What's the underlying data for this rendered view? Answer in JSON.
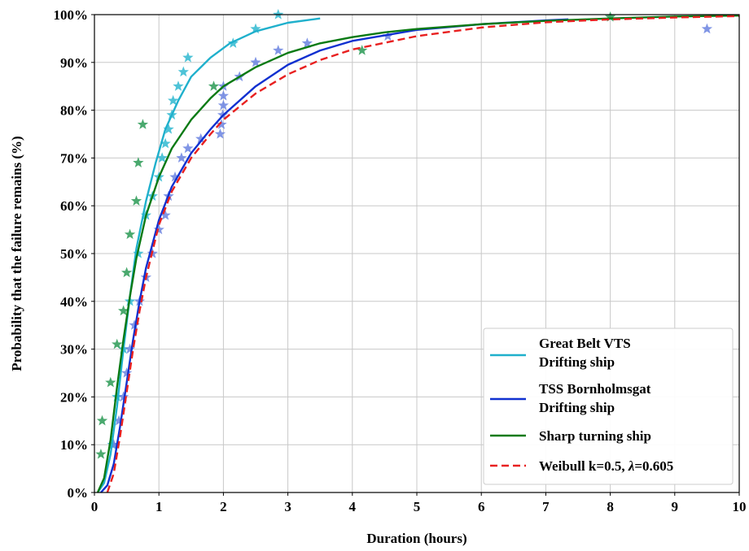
{
  "chart_data": {
    "type": "scatter",
    "xlabel": "Duration (hours)",
    "ylabel": "Probability that the failure remains (%)",
    "xlim": [
      0,
      10
    ],
    "ylim": [
      0,
      100
    ],
    "x_ticks": [
      "0",
      "1",
      "2",
      "3",
      "4",
      "5",
      "6",
      "7",
      "8",
      "9",
      "10"
    ],
    "y_ticks": [
      "0%",
      "10%",
      "20%",
      "30%",
      "40%",
      "50%",
      "60%",
      "70%",
      "80%",
      "90%",
      "100%"
    ],
    "grid": true,
    "legend_position": "bottom-right",
    "series": [
      {
        "name": "Great Belt VTS\nDrifting ship",
        "legend_lines": [
          "Great Belt VTS",
          "Drifting ship"
        ],
        "color": "#1fb0cc",
        "marker_color": "#2fb8d0",
        "line_style": "solid",
        "curve": [
          [
            0.05,
            0
          ],
          [
            0.15,
            2
          ],
          [
            0.25,
            8
          ],
          [
            0.35,
            18
          ],
          [
            0.45,
            30
          ],
          [
            0.55,
            41
          ],
          [
            0.65,
            51
          ],
          [
            0.8,
            61
          ],
          [
            0.95,
            69
          ],
          [
            1.1,
            76
          ],
          [
            1.3,
            82
          ],
          [
            1.5,
            87
          ],
          [
            1.8,
            91
          ],
          [
            2.1,
            94
          ],
          [
            2.5,
            96.5
          ],
          [
            3.0,
            98.3
          ],
          [
            3.5,
            99.2
          ]
        ],
        "points": [
          [
            0.28,
            10
          ],
          [
            0.35,
            20
          ],
          [
            0.45,
            30
          ],
          [
            0.55,
            40
          ],
          [
            0.68,
            50
          ],
          [
            0.8,
            58
          ],
          [
            0.9,
            62
          ],
          [
            1.0,
            66
          ],
          [
            1.05,
            70
          ],
          [
            1.1,
            73
          ],
          [
            1.15,
            76
          ],
          [
            1.2,
            79
          ],
          [
            1.22,
            82
          ],
          [
            1.3,
            85
          ],
          [
            1.38,
            88
          ],
          [
            1.45,
            91
          ],
          [
            2.15,
            94
          ],
          [
            2.5,
            97
          ],
          [
            2.85,
            100
          ]
        ]
      },
      {
        "name": "TSS Bornholmsgat\nDrifting ship",
        "legend_lines": [
          "TSS Bornholmsgat",
          "Drifting ship"
        ],
        "color": "#1030d0",
        "marker_color": "#6a82e0",
        "line_style": "solid",
        "curve": [
          [
            0.1,
            0
          ],
          [
            0.2,
            1.5
          ],
          [
            0.3,
            6
          ],
          [
            0.4,
            14
          ],
          [
            0.5,
            23
          ],
          [
            0.6,
            32
          ],
          [
            0.7,
            40
          ],
          [
            0.8,
            47
          ],
          [
            1.0,
            57
          ],
          [
            1.2,
            64
          ],
          [
            1.5,
            71
          ],
          [
            1.8,
            76
          ],
          [
            2.0,
            79
          ],
          [
            2.5,
            85
          ],
          [
            3.0,
            89.5
          ],
          [
            3.5,
            92.5
          ],
          [
            4.0,
            94.5
          ],
          [
            5.0,
            96.8
          ],
          [
            6.0,
            98
          ],
          [
            7.0,
            98.8
          ],
          [
            7.35,
            99
          ]
        ],
        "points": [
          [
            0.3,
            10
          ],
          [
            0.38,
            15
          ],
          [
            0.45,
            20
          ],
          [
            0.5,
            25
          ],
          [
            0.55,
            30
          ],
          [
            0.62,
            35
          ],
          [
            0.7,
            40
          ],
          [
            0.8,
            45
          ],
          [
            0.9,
            50
          ],
          [
            1.0,
            55
          ],
          [
            1.1,
            58
          ],
          [
            1.15,
            62
          ],
          [
            1.25,
            66
          ],
          [
            1.35,
            70
          ],
          [
            1.45,
            72
          ],
          [
            1.65,
            74
          ],
          [
            1.95,
            75
          ],
          [
            1.97,
            77
          ],
          [
            1.99,
            79
          ],
          [
            2.0,
            81
          ],
          [
            2.0,
            83
          ],
          [
            2.0,
            85
          ],
          [
            2.25,
            87
          ],
          [
            2.5,
            90
          ],
          [
            2.85,
            92.5
          ],
          [
            3.3,
            94
          ],
          [
            4.55,
            95.5
          ],
          [
            9.5,
            97
          ]
        ]
      },
      {
        "name": "Sharp turning ship",
        "legend_lines": [
          "Sharp turning ship"
        ],
        "color": "#0a7a14",
        "marker_color": "#2a9a55",
        "line_style": "solid",
        "curve": [
          [
            0.05,
            0
          ],
          [
            0.15,
            3
          ],
          [
            0.25,
            11
          ],
          [
            0.35,
            22
          ],
          [
            0.45,
            32
          ],
          [
            0.55,
            41
          ],
          [
            0.65,
            49
          ],
          [
            0.8,
            58
          ],
          [
            1.0,
            66
          ],
          [
            1.2,
            72
          ],
          [
            1.5,
            78
          ],
          [
            1.8,
            82.5
          ],
          [
            2.0,
            85
          ],
          [
            2.5,
            89
          ],
          [
            3.0,
            92
          ],
          [
            3.5,
            94
          ],
          [
            4.0,
            95.3
          ],
          [
            4.5,
            96.3
          ],
          [
            5.0,
            97
          ],
          [
            6.0,
            98
          ],
          [
            7.0,
            98.7
          ],
          [
            8.0,
            99.2
          ],
          [
            9.0,
            99.6
          ],
          [
            10.0,
            99.8
          ]
        ],
        "points": [
          [
            0.1,
            8
          ],
          [
            0.12,
            15
          ],
          [
            0.25,
            23
          ],
          [
            0.35,
            31
          ],
          [
            0.45,
            38
          ],
          [
            0.5,
            46
          ],
          [
            0.55,
            54
          ],
          [
            0.65,
            61
          ],
          [
            0.68,
            69
          ],
          [
            0.75,
            77
          ],
          [
            1.85,
            85
          ],
          [
            4.15,
            92.5
          ],
          [
            8.0,
            99.5
          ]
        ]
      },
      {
        "name": "Weibull k=0.5, λ=0.605",
        "legend_prefix": "Weibull k=0.5, ",
        "legend_lambda": "λ",
        "legend_suffix": "=0.605",
        "color": "#e82020",
        "line_style": "dashed",
        "curve": [
          [
            0.2,
            0
          ],
          [
            0.3,
            4
          ],
          [
            0.4,
            12
          ],
          [
            0.5,
            21
          ],
          [
            0.6,
            30
          ],
          [
            0.7,
            38
          ],
          [
            0.8,
            45
          ],
          [
            1.0,
            56
          ],
          [
            1.2,
            63
          ],
          [
            1.5,
            70
          ],
          [
            1.8,
            75
          ],
          [
            2.0,
            78
          ],
          [
            2.5,
            83.5
          ],
          [
            3.0,
            87.5
          ],
          [
            3.5,
            90.5
          ],
          [
            4.0,
            92.7
          ],
          [
            5.0,
            95.5
          ],
          [
            6.0,
            97.3
          ],
          [
            7.0,
            98.4
          ],
          [
            8.0,
            99.0
          ],
          [
            9.0,
            99.4
          ],
          [
            10.0,
            99.7
          ]
        ],
        "points": []
      }
    ]
  }
}
